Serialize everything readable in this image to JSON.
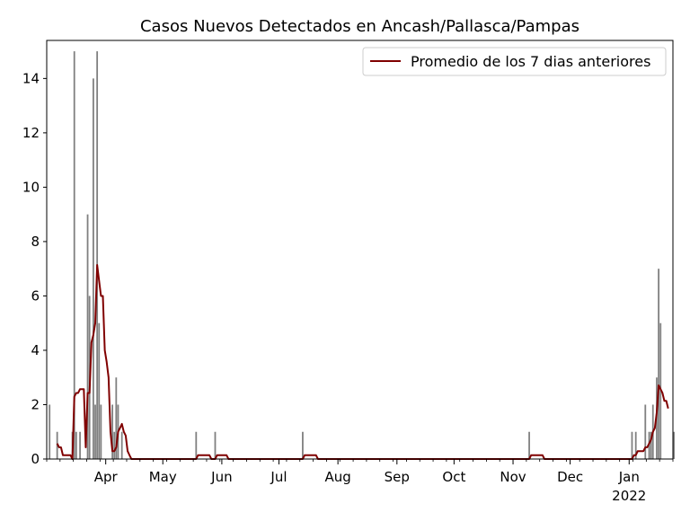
{
  "chart_data": {
    "type": "bar",
    "title": "Casos Nuevos Detectados en Ancash/Pallasca/Pampas",
    "xlabel": "",
    "ylabel": "",
    "x_range": [
      "2021-03-01",
      "2022-01-24"
    ],
    "ylim": [
      0,
      15.4
    ],
    "y_ticks": [
      0,
      2,
      4,
      6,
      8,
      10,
      12,
      14
    ],
    "x_ticks": [
      {
        "date": "2021-04-01",
        "label": "Apr"
      },
      {
        "date": "2021-05-01",
        "label": "May"
      },
      {
        "date": "2021-06-01",
        "label": "Jun"
      },
      {
        "date": "2021-07-01",
        "label": "Jul"
      },
      {
        "date": "2021-08-01",
        "label": "Aug"
      },
      {
        "date": "2021-09-01",
        "label": "Sep"
      },
      {
        "date": "2021-10-01",
        "label": "Oct"
      },
      {
        "date": "2021-11-01",
        "label": "Nov"
      },
      {
        "date": "2021-12-01",
        "label": "Dec"
      },
      {
        "date": "2022-01-01",
        "label": "Jan",
        "sublabel": "2022"
      }
    ],
    "grid": false,
    "legend_position": "top-right",
    "colors": {
      "bars": "#808080",
      "line": "#800000"
    },
    "series": [
      {
        "type": "bar",
        "color": "#808080",
        "values": [
          [
            "2021-03-02",
            2
          ],
          [
            "2021-03-06",
            1
          ],
          [
            "2021-03-14",
            1
          ],
          [
            "2021-03-15",
            15
          ],
          [
            "2021-03-16",
            1
          ],
          [
            "2021-03-18",
            1
          ],
          [
            "2021-03-22",
            9
          ],
          [
            "2021-03-23",
            6
          ],
          [
            "2021-03-25",
            14
          ],
          [
            "2021-03-26",
            2
          ],
          [
            "2021-03-27",
            15
          ],
          [
            "2021-03-28",
            5
          ],
          [
            "2021-03-29",
            2
          ],
          [
            "2021-04-04",
            2
          ],
          [
            "2021-04-05",
            1
          ],
          [
            "2021-04-06",
            3
          ],
          [
            "2021-04-07",
            2
          ],
          [
            "2021-04-09",
            1
          ],
          [
            "2021-05-18",
            1
          ],
          [
            "2021-05-28",
            1
          ],
          [
            "2021-07-13",
            1
          ],
          [
            "2021-11-09",
            1
          ],
          [
            "2022-01-02",
            1
          ],
          [
            "2022-01-04",
            1
          ],
          [
            "2022-01-09",
            2
          ],
          [
            "2022-01-11",
            1
          ],
          [
            "2022-01-12",
            1
          ],
          [
            "2022-01-13",
            2
          ],
          [
            "2022-01-15",
            3
          ],
          [
            "2022-01-16",
            7
          ],
          [
            "2022-01-17",
            5
          ],
          [
            "2022-01-24",
            1
          ]
        ]
      },
      {
        "type": "line",
        "name": "Promedio de los 7 dias anteriores",
        "color": "#800000",
        "values": [
          [
            "2021-03-06",
            0.57
          ],
          [
            "2021-03-07",
            0.43
          ],
          [
            "2021-03-08",
            0.43
          ],
          [
            "2021-03-09",
            0.14
          ],
          [
            "2021-03-13",
            0.14
          ],
          [
            "2021-03-14",
            0.0
          ],
          [
            "2021-03-15",
            2.29
          ],
          [
            "2021-03-16",
            2.43
          ],
          [
            "2021-03-17",
            2.43
          ],
          [
            "2021-03-18",
            2.57
          ],
          [
            "2021-03-20",
            2.57
          ],
          [
            "2021-03-21",
            0.43
          ],
          [
            "2021-03-22",
            2.43
          ],
          [
            "2021-03-23",
            2.43
          ],
          [
            "2021-03-24",
            4.29
          ],
          [
            "2021-03-25",
            4.57
          ],
          [
            "2021-03-26",
            5.0
          ],
          [
            "2021-03-27",
            7.14
          ],
          [
            "2021-03-28",
            6.57
          ],
          [
            "2021-03-29",
            6.0
          ],
          [
            "2021-03-30",
            6.0
          ],
          [
            "2021-03-31",
            4.0
          ],
          [
            "2021-04-01",
            3.57
          ],
          [
            "2021-04-02",
            3.0
          ],
          [
            "2021-04-03",
            1.0
          ],
          [
            "2021-04-04",
            0.29
          ],
          [
            "2021-04-05",
            0.29
          ],
          [
            "2021-04-06",
            0.43
          ],
          [
            "2021-04-07",
            1.0
          ],
          [
            "2021-04-08",
            1.14
          ],
          [
            "2021-04-09",
            1.29
          ],
          [
            "2021-04-10",
            1.0
          ],
          [
            "2021-04-11",
            0.86
          ],
          [
            "2021-04-12",
            0.29
          ],
          [
            "2021-04-13",
            0.14
          ],
          [
            "2021-04-14",
            0.0
          ],
          [
            "2021-05-18",
            0.0
          ],
          [
            "2021-05-19",
            0.14
          ],
          [
            "2021-05-25",
            0.14
          ],
          [
            "2021-05-26",
            0.0
          ],
          [
            "2021-05-28",
            0.0
          ],
          [
            "2021-05-29",
            0.14
          ],
          [
            "2021-06-03",
            0.14
          ],
          [
            "2021-06-04",
            0.0
          ],
          [
            "2021-07-13",
            0.0
          ],
          [
            "2021-07-14",
            0.14
          ],
          [
            "2021-07-20",
            0.14
          ],
          [
            "2021-07-21",
            0.0
          ],
          [
            "2021-11-09",
            0.0
          ],
          [
            "2021-11-10",
            0.14
          ],
          [
            "2021-11-16",
            0.14
          ],
          [
            "2021-11-17",
            0.0
          ],
          [
            "2022-01-02",
            0.0
          ],
          [
            "2022-01-03",
            0.14
          ],
          [
            "2022-01-04",
            0.14
          ],
          [
            "2022-01-05",
            0.29
          ],
          [
            "2022-01-08",
            0.29
          ],
          [
            "2022-01-09",
            0.43
          ],
          [
            "2022-01-10",
            0.43
          ],
          [
            "2022-01-11",
            0.57
          ],
          [
            "2022-01-12",
            0.71
          ],
          [
            "2022-01-13",
            1.0
          ],
          [
            "2022-01-14",
            1.14
          ],
          [
            "2022-01-15",
            1.71
          ],
          [
            "2022-01-16",
            2.71
          ],
          [
            "2022-01-17",
            2.57
          ],
          [
            "2022-01-18",
            2.43
          ],
          [
            "2022-01-19",
            2.14
          ],
          [
            "2022-01-20",
            2.14
          ],
          [
            "2022-01-21",
            1.86
          ]
        ]
      }
    ]
  }
}
